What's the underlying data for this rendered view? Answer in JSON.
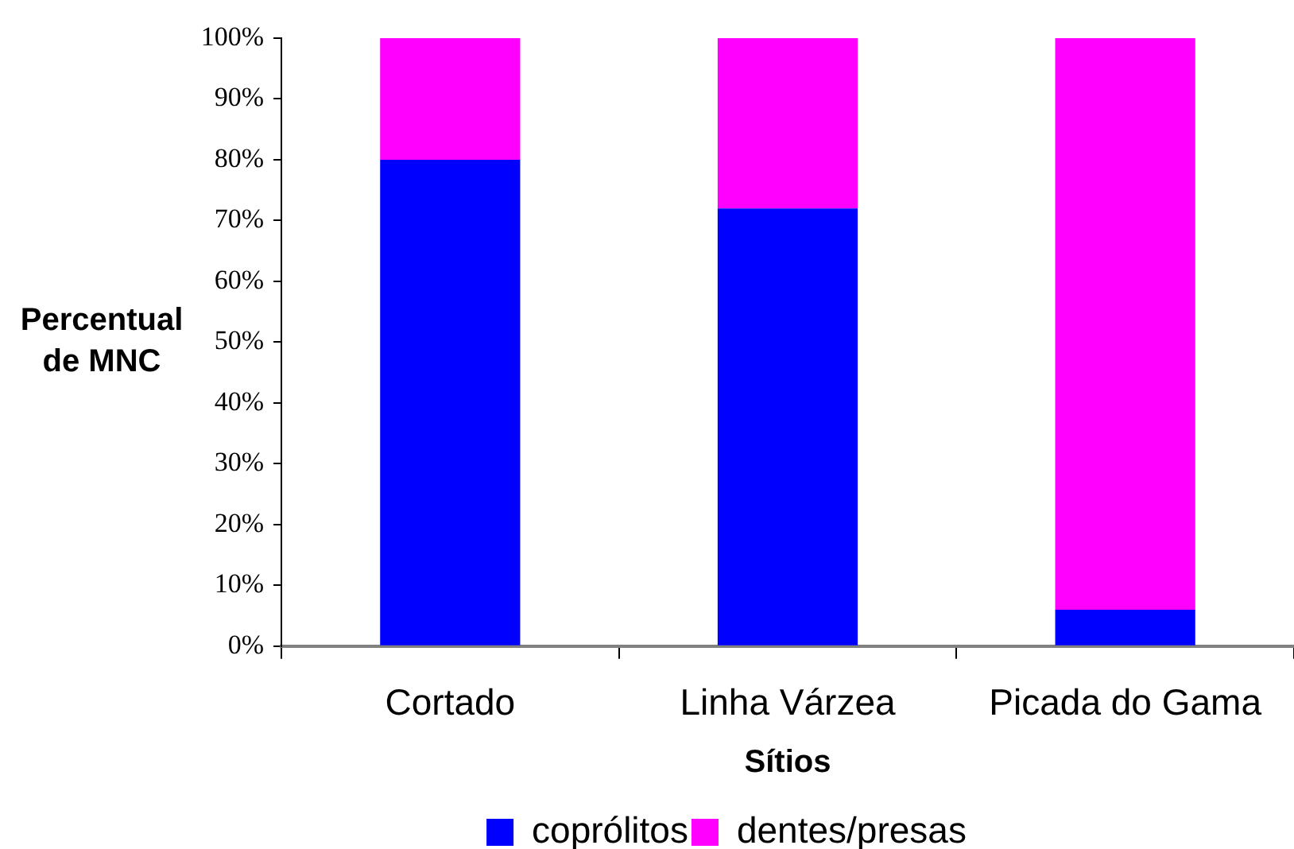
{
  "chart_data": {
    "type": "bar",
    "stacked": true,
    "xlabel": "Sítios",
    "ylabel": "Percentual de MNC",
    "categories": [
      "Cortado",
      "Linha Várzea",
      "Picada do Gama"
    ],
    "series": [
      {
        "name": "coprólitos",
        "color": "#0000ff",
        "values": [
          80,
          72,
          6
        ]
      },
      {
        "name": "dentes/presas",
        "color": "#ff00ff",
        "values": [
          20,
          28,
          94
        ]
      }
    ],
    "ylim": [
      0,
      100
    ],
    "yticks": [
      {
        "value": 0,
        "label": "0%"
      },
      {
        "value": 10,
        "label": "10%"
      },
      {
        "value": 20,
        "label": "20%"
      },
      {
        "value": 30,
        "label": "30%"
      },
      {
        "value": 40,
        "label": "40%"
      },
      {
        "value": 50,
        "label": "50%"
      },
      {
        "value": 60,
        "label": "60%"
      },
      {
        "value": 70,
        "label": "70%"
      },
      {
        "value": 80,
        "label": "80%"
      },
      {
        "value": 90,
        "label": "90%"
      },
      {
        "value": 100,
        "label": "100%"
      }
    ],
    "grid": false,
    "legend": "bottom"
  }
}
